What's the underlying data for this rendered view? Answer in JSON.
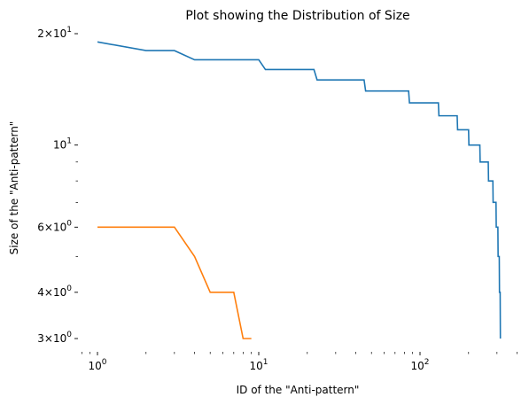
{
  "chart_data": {
    "type": "line",
    "title": "Plot showing the Distribution of Size",
    "xlabel": "ID of the \"Anti-pattern\"",
    "ylabel": "Size of the \"Anti-pattern\"",
    "xscale": "log",
    "yscale": "log",
    "xlim": [
      0.8,
      420
    ],
    "ylim": [
      2.8,
      21.5
    ],
    "grid": false,
    "x_ticks": [
      {
        "value": 1,
        "base": "10",
        "exp": "0"
      },
      {
        "value": 10,
        "base": "10",
        "exp": "1"
      },
      {
        "value": 100,
        "base": "10",
        "exp": "2"
      }
    ],
    "y_ticks": [
      {
        "value": 3,
        "mantissa": "3",
        "base": "10",
        "exp": "0"
      },
      {
        "value": 4,
        "mantissa": "4",
        "base": "10",
        "exp": "0"
      },
      {
        "value": 6,
        "mantissa": "6",
        "base": "10",
        "exp": "0"
      },
      {
        "value": 10,
        "mantissa": "",
        "base": "10",
        "exp": "1"
      },
      {
        "value": 20,
        "mantissa": "2",
        "base": "10",
        "exp": "1"
      }
    ],
    "y_minor_ticks": [
      5,
      7,
      8,
      9
    ],
    "series": [
      {
        "color": "#1f77b4",
        "points": [
          [
            1,
            19
          ],
          [
            2,
            18
          ],
          [
            3,
            18
          ],
          [
            4,
            17
          ],
          [
            10,
            17
          ],
          [
            11,
            16
          ],
          [
            22,
            16
          ],
          [
            23,
            15
          ],
          [
            45,
            15
          ],
          [
            46,
            14
          ],
          [
            85,
            14
          ],
          [
            86,
            13
          ],
          [
            130,
            13
          ],
          [
            131,
            12
          ],
          [
            170,
            12
          ],
          [
            171,
            11
          ],
          [
            200,
            11
          ],
          [
            201,
            10
          ],
          [
            235,
            10
          ],
          [
            236,
            9
          ],
          [
            265,
            9
          ],
          [
            266,
            8
          ],
          [
            283,
            8
          ],
          [
            284,
            7
          ],
          [
            296,
            7
          ],
          [
            297,
            6
          ],
          [
            304,
            6
          ],
          [
            305,
            5
          ],
          [
            310,
            5
          ],
          [
            311,
            4
          ],
          [
            314,
            4
          ],
          [
            315,
            3
          ]
        ]
      },
      {
        "color": "#ff7f0e",
        "points": [
          [
            1,
            6
          ],
          [
            2,
            6
          ],
          [
            3,
            6
          ],
          [
            4,
            5
          ],
          [
            5,
            4
          ],
          [
            6,
            4
          ],
          [
            7,
            4
          ],
          [
            8,
            3
          ],
          [
            9,
            3
          ]
        ]
      }
    ]
  }
}
